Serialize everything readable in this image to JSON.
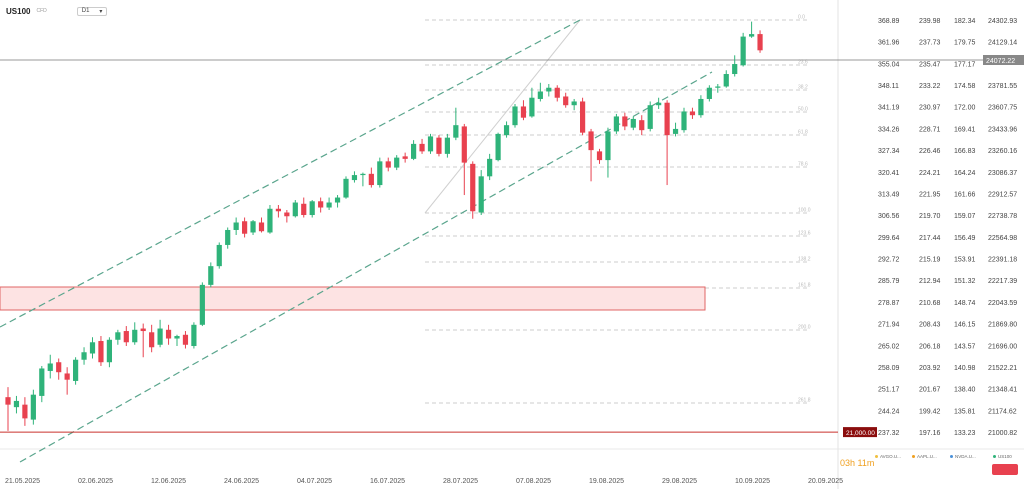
{
  "header": {
    "symbol": "US100",
    "symbol_sub": "CFD",
    "timeframe": "D1",
    "timeframe_caret": "▾"
  },
  "timer": "03h 11m",
  "colors": {
    "up": "#2fb37a",
    "down": "#e8414f",
    "channel": "#5aa58d",
    "level": "#c9302c",
    "zone_fill": "#fde3e3",
    "zone_border": "#e06666"
  },
  "legend": [
    {
      "label": "AVGO.U...",
      "color": "#f0c040"
    },
    {
      "label": "AAPL.U...",
      "color": "#f0a020"
    },
    {
      "label": "NVDA.U...",
      "color": "#4a90d9"
    },
    {
      "label": "US100",
      "color": "#2fb37a"
    }
  ],
  "chart_data": {
    "type": "candlestick",
    "symbol": "US100",
    "timeframe": "D1",
    "x_tick_labels": [
      "21.05.2025",
      "02.06.2025",
      "12.06.2025",
      "24.06.2025",
      "04.07.2025",
      "16.07.2025",
      "28.07.2025",
      "07.08.2025",
      "19.08.2025",
      "29.08.2025",
      "10.09.2025",
      "20.09.2025"
    ],
    "y_range": [
      21000.82,
      24302.93
    ],
    "y_ticks": [
      24302.93,
      24129.14,
      23955.34,
      23781.55,
      23607.75,
      23433.96,
      23260.16,
      23086.37,
      22912.57,
      22738.78,
      22564.98,
      22391.18,
      22217.39,
      22043.59,
      21869.8,
      21696.0,
      21522.21,
      21348.41,
      21174.62,
      21000.82
    ],
    "extra_scales": [
      [
        "368.89",
        "361.96",
        "355.04",
        "348.11",
        "341.19",
        "334.26",
        "327.34",
        "320.41",
        "313.49",
        "306.56",
        "299.64",
        "292.72",
        "285.79",
        "278.87",
        "271.94",
        "265.02",
        "258.09",
        "251.17",
        "244.24",
        "237.32"
      ],
      [
        "239.98",
        "237.73",
        "235.47",
        "233.22",
        "230.97",
        "228.71",
        "226.46",
        "224.21",
        "221.95",
        "219.70",
        "217.44",
        "215.19",
        "212.94",
        "210.68",
        "208.43",
        "206.18",
        "203.92",
        "201.67",
        "199.42",
        "197.16"
      ],
      [
        "182.34",
        "179.75",
        "177.17",
        "174.58",
        "172.00",
        "169.41",
        "166.83",
        "164.24",
        "161.66",
        "159.07",
        "156.49",
        "153.91",
        "151.32",
        "148.74",
        "146.15",
        "143.57",
        "140.98",
        "138.40",
        "135.81",
        "133.23"
      ]
    ],
    "current_price": "24072.22",
    "horizontal_level": {
      "value": 21000,
      "label": "21,000.00"
    },
    "fibonacci_levels": [
      "0.0",
      "23.6",
      "38.2",
      "50.0",
      "61.8",
      "78.6",
      "100.0",
      "123.6",
      "138.2",
      "161.8",
      "200.0",
      "261.8"
    ],
    "candles": [
      [
        21280,
        21220,
        21360,
        21010
      ],
      [
        21200,
        21250,
        21290,
        21150
      ],
      [
        21220,
        21110,
        21280,
        21050
      ],
      [
        21100,
        21300,
        21340,
        21060
      ],
      [
        21290,
        21510,
        21530,
        21240
      ],
      [
        21490,
        21550,
        21620,
        21430
      ],
      [
        21560,
        21480,
        21590,
        21420
      ],
      [
        21470,
        21420,
        21520,
        21300
      ],
      [
        21410,
        21580,
        21600,
        21380
      ],
      [
        21580,
        21640,
        21680,
        21540
      ],
      [
        21630,
        21720,
        21760,
        21590
      ],
      [
        21730,
        21560,
        21770,
        21530
      ],
      [
        21560,
        21740,
        21760,
        21520
      ],
      [
        21740,
        21800,
        21820,
        21700
      ],
      [
        21810,
        21720,
        21850,
        21690
      ],
      [
        21720,
        21820,
        21880,
        21700
      ],
      [
        21830,
        21810,
        21870,
        21600
      ],
      [
        21800,
        21680,
        21860,
        21640
      ],
      [
        21700,
        21830,
        21900,
        21680
      ],
      [
        21820,
        21750,
        21860,
        21700
      ],
      [
        21750,
        21770,
        21780,
        21690
      ],
      [
        21780,
        21700,
        21810,
        21670
      ],
      [
        21690,
        21860,
        21880,
        21670
      ],
      [
        21860,
        22180,
        22200,
        21850
      ],
      [
        22180,
        22330,
        22360,
        22160
      ],
      [
        22330,
        22500,
        22520,
        22310
      ],
      [
        22500,
        22620,
        22640,
        22470
      ],
      [
        22620,
        22680,
        22720,
        22580
      ],
      [
        22690,
        22590,
        22720,
        22560
      ],
      [
        22600,
        22690,
        22700,
        22580
      ],
      [
        22680,
        22610,
        22720,
        22600
      ],
      [
        22600,
        22790,
        22820,
        22590
      ],
      [
        22790,
        22770,
        22820,
        22720
      ],
      [
        22760,
        22730,
        22780,
        22680
      ],
      [
        22730,
        22840,
        22860,
        22720
      ],
      [
        22830,
        22740,
        22880,
        22720
      ],
      [
        22740,
        22850,
        22860,
        22720
      ],
      [
        22850,
        22800,
        22880,
        22760
      ],
      [
        22800,
        22840,
        22880,
        22780
      ],
      [
        22840,
        22880,
        22900,
        22800
      ],
      [
        22880,
        23030,
        23050,
        22870
      ],
      [
        23020,
        23060,
        23090,
        23000
      ],
      [
        23060,
        23070,
        23080,
        22970
      ],
      [
        23070,
        22980,
        23120,
        22960
      ],
      [
        22980,
        23170,
        23200,
        22960
      ],
      [
        23170,
        23120,
        23200,
        23090
      ],
      [
        23120,
        23200,
        23220,
        23100
      ],
      [
        23210,
        23190,
        23240,
        23160
      ],
      [
        23190,
        23310,
        23340,
        23180
      ],
      [
        23310,
        23250,
        23350,
        23230
      ],
      [
        23250,
        23370,
        23390,
        23230
      ],
      [
        23360,
        23230,
        23380,
        23210
      ],
      [
        23230,
        23360,
        23390,
        23200
      ],
      [
        23360,
        23460,
        23600,
        23340
      ],
      [
        23450,
        23160,
        23470,
        22900
      ],
      [
        23150,
        22770,
        23170,
        22710
      ],
      [
        22760,
        23050,
        23100,
        22740
      ],
      [
        23050,
        23190,
        23230,
        23020
      ],
      [
        23180,
        23390,
        23400,
        23170
      ],
      [
        23380,
        23460,
        23490,
        23360
      ],
      [
        23460,
        23610,
        23630,
        23440
      ],
      [
        23610,
        23520,
        23660,
        23500
      ],
      [
        23530,
        23680,
        23760,
        23520
      ],
      [
        23670,
        23730,
        23800,
        23650
      ],
      [
        23730,
        23760,
        23790,
        23690
      ],
      [
        23760,
        23680,
        23780,
        23650
      ],
      [
        23690,
        23620,
        23720,
        23600
      ],
      [
        23620,
        23650,
        23670,
        23580
      ],
      [
        23650,
        23400,
        23680,
        23380
      ],
      [
        23410,
        23260,
        23430,
        23010
      ],
      [
        23250,
        23180,
        23270,
        23150
      ],
      [
        23180,
        23410,
        23440,
        23040
      ],
      [
        23410,
        23530,
        23550,
        23390
      ],
      [
        23530,
        23450,
        23560,
        23420
      ],
      [
        23440,
        23510,
        23530,
        23420
      ],
      [
        23500,
        23420,
        23540,
        23380
      ],
      [
        23430,
        23620,
        23650,
        23410
      ],
      [
        23620,
        23640,
        23680,
        23590
      ],
      [
        23640,
        23380,
        23660,
        22980
      ],
      [
        23390,
        23430,
        23480,
        23370
      ],
      [
        23420,
        23570,
        23600,
        23400
      ],
      [
        23570,
        23540,
        23600,
        23510
      ],
      [
        23540,
        23670,
        23700,
        23520
      ],
      [
        23670,
        23760,
        23780,
        23650
      ],
      [
        23760,
        23770,
        23790,
        23720
      ],
      [
        23770,
        23870,
        23900,
        23760
      ],
      [
        23870,
        23950,
        24020,
        23850
      ],
      [
        23940,
        24170,
        24200,
        23930
      ],
      [
        24170,
        24190,
        24290,
        24160
      ],
      [
        24190,
        24060,
        24220,
        24040
      ]
    ]
  }
}
